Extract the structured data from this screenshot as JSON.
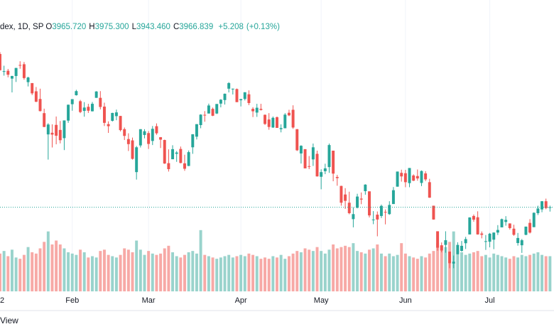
{
  "header": {
    "symbol": "dex, 1D, SP",
    "ohlc": [
      {
        "label": "O",
        "value": "3965.720"
      },
      {
        "label": "H",
        "value": "3975.300"
      },
      {
        "label": "L",
        "value": "3943.460"
      },
      {
        "label": "C",
        "value": "3966.839"
      }
    ],
    "change": "+5.208",
    "change_pct": "(+0.13%)"
  },
  "chart_data": {
    "type": "candlestick",
    "candles": [
      [
        4778,
        4797,
        4758,
        4796
      ],
      [
        4804,
        4819,
        4775,
        4793
      ],
      [
        4788,
        4798,
        4699,
        4701
      ],
      [
        4693,
        4725,
        4672,
        4696
      ],
      [
        4698,
        4708,
        4663,
        4677
      ],
      [
        4656,
        4671,
        4582,
        4670
      ],
      [
        4670,
        4714,
        4638,
        4713
      ],
      [
        4729,
        4749,
        4709,
        4726
      ],
      [
        4733,
        4745,
        4650,
        4659
      ],
      [
        4637,
        4666,
        4614,
        4662
      ],
      [
        4632,
        4632,
        4568,
        4577
      ],
      [
        4588,
        4611,
        4530,
        4532
      ],
      [
        4547,
        4602,
        4480,
        4482
      ],
      [
        4471,
        4495,
        4396,
        4397
      ],
      [
        4357,
        4417,
        4222,
        4410
      ],
      [
        4366,
        4411,
        4287,
        4356
      ],
      [
        4408,
        4453,
        4304,
        4350
      ],
      [
        4381,
        4429,
        4309,
        4326
      ],
      [
        4337,
        4432,
        4273,
        4432
      ],
      [
        4431,
        4517,
        4419,
        4516
      ],
      [
        4519,
        4546,
        4484,
        4546
      ],
      [
        4567,
        4596,
        4565,
        4589
      ],
      [
        4535,
        4542,
        4471,
        4477
      ],
      [
        4483,
        4530,
        4452,
        4501
      ],
      [
        4505,
        4521,
        4472,
        4484
      ],
      [
        4481,
        4531,
        4480,
        4521
      ],
      [
        4553,
        4589,
        4553,
        4587
      ],
      [
        4553,
        4589,
        4491,
        4504
      ],
      [
        4506,
        4527,
        4402,
        4419
      ],
      [
        4412,
        4427,
        4365,
        4401
      ],
      [
        4430,
        4473,
        4426,
        4472
      ],
      [
        4455,
        4490,
        4433,
        4475
      ],
      [
        4456,
        4456,
        4373,
        4380
      ],
      [
        4385,
        4394,
        4327,
        4349
      ],
      [
        4332,
        4363,
        4268,
        4305
      ],
      [
        4325,
        4340,
        4222,
        4226
      ],
      [
        4155,
        4295,
        4115,
        4288
      ],
      [
        4298,
        4385,
        4287,
        4385
      ],
      [
        4354,
        4385,
        4336,
        4374
      ],
      [
        4364,
        4375,
        4279,
        4306
      ],
      [
        4322,
        4402,
        4300,
        4387
      ],
      [
        4401,
        4416,
        4355,
        4363
      ],
      [
        4342,
        4343,
        4284,
        4329
      ],
      [
        4327,
        4329,
        4199,
        4201
      ],
      [
        4203,
        4277,
        4158,
        4171
      ],
      [
        4224,
        4299,
        4224,
        4278
      ],
      [
        4253,
        4268,
        4210,
        4260
      ],
      [
        4279,
        4292,
        4202,
        4204
      ],
      [
        4202,
        4248,
        4162,
        4173
      ],
      [
        4188,
        4271,
        4187,
        4262
      ],
      [
        4288,
        4358,
        4253,
        4358
      ],
      [
        4345,
        4412,
        4330,
        4412
      ],
      [
        4407,
        4465,
        4390,
        4463
      ],
      [
        4462,
        4482,
        4425,
        4461
      ],
      [
        4469,
        4522,
        4469,
        4512
      ],
      [
        4494,
        4501,
        4455,
        4457
      ],
      [
        4469,
        4520,
        4466,
        4520
      ],
      [
        4522,
        4546,
        4502,
        4543
      ],
      [
        4541,
        4576,
        4517,
        4575
      ],
      [
        4602,
        4637,
        4582,
        4632
      ],
      [
        4600,
        4603,
        4571,
        4602
      ],
      [
        4600,
        4603,
        4530,
        4530
      ],
      [
        4540,
        4548,
        4507,
        4546
      ],
      [
        4547,
        4583,
        4539,
        4583
      ],
      [
        4572,
        4593,
        4514,
        4525
      ],
      [
        4494,
        4503,
        4450,
        4481
      ],
      [
        4474,
        4521,
        4451,
        4500
      ],
      [
        4494,
        4521,
        4485,
        4488
      ],
      [
        4462,
        4464,
        4408,
        4413
      ],
      [
        4437,
        4471,
        4382,
        4397
      ],
      [
        4394,
        4453,
        4392,
        4446
      ],
      [
        4449,
        4453,
        4392,
        4392
      ],
      [
        4385,
        4411,
        4368,
        4391
      ],
      [
        4390,
        4471,
        4390,
        4463
      ],
      [
        4473,
        4489,
        4455,
        4459
      ],
      [
        4489,
        4513,
        4387,
        4394
      ],
      [
        4385,
        4386,
        4268,
        4272
      ],
      [
        4255,
        4299,
        4201,
        4296
      ],
      [
        4278,
        4278,
        4175,
        4175
      ],
      [
        4187,
        4241,
        4171,
        4184
      ],
      [
        4223,
        4308,
        4188,
        4288
      ],
      [
        4253,
        4270,
        4131,
        4132
      ],
      [
        4130,
        4170,
        4063,
        4155
      ],
      [
        4160,
        4200,
        4144,
        4175
      ],
      [
        4182,
        4308,
        4151,
        4300
      ],
      [
        4270,
        4270,
        4106,
        4147
      ],
      [
        4129,
        4140,
        4082,
        4123
      ],
      [
        4081,
        4082,
        3975,
        3991
      ],
      [
        4035,
        4069,
        3958,
        4001
      ],
      [
        3991,
        4050,
        3929,
        3935
      ],
      [
        3903,
        3965,
        3859,
        3930
      ],
      [
        3964,
        4039,
        3961,
        4024
      ],
      [
        4013,
        4046,
        3983,
        4008
      ],
      [
        4053,
        4090,
        4034,
        4088
      ],
      [
        4052,
        4052,
        3912,
        3923
      ],
      [
        3900,
        3946,
        3876,
        3901
      ],
      [
        3927,
        3944,
        3811,
        3901
      ],
      [
        3920,
        3981,
        3909,
        3974
      ],
      [
        3942,
        3955,
        3875,
        3941
      ],
      [
        3930,
        3999,
        3926,
        3979
      ],
      [
        3984,
        4075,
        3984,
        4058
      ],
      [
        4077,
        4158,
        4077,
        4158
      ],
      [
        4151,
        4168,
        4104,
        4132
      ],
      [
        4149,
        4167,
        4074,
        4101
      ],
      [
        4096,
        4177,
        4074,
        4177
      ],
      [
        4137,
        4143,
        4107,
        4109
      ],
      [
        4134,
        4169,
        4109,
        4121
      ],
      [
        4097,
        4164,
        4080,
        4161
      ],
      [
        4148,
        4160,
        4107,
        4116
      ],
      [
        4101,
        4119,
        4017,
        4018
      ],
      [
        3975,
        3975,
        3900,
        3901
      ],
      [
        3838,
        3838,
        3734,
        3750
      ],
      [
        3763,
        3778,
        3725,
        3735
      ],
      [
        3765,
        3838,
        3723,
        3790
      ],
      [
        3729,
        3729,
        3640,
        3667
      ],
      [
        3665,
        3708,
        3640,
        3675
      ],
      [
        3715,
        3779,
        3715,
        3765
      ],
      [
        3733,
        3786,
        3729,
        3760
      ],
      [
        3774,
        3808,
        3743,
        3796
      ],
      [
        3821,
        3913,
        3821,
        3912
      ],
      [
        3920,
        3928,
        3889,
        3900
      ],
      [
        3913,
        3945,
        3820,
        3821
      ],
      [
        3826,
        3837,
        3800,
        3819
      ],
      [
        3785,
        3818,
        3738,
        3785
      ],
      [
        3782,
        3829,
        3752,
        3825
      ],
      [
        3793,
        3832,
        3742,
        3831
      ],
      [
        3831,
        3871,
        3818,
        3845
      ],
      [
        3859,
        3906,
        3859,
        3903
      ],
      [
        3888,
        3919,
        3868,
        3899
      ],
      [
        3880,
        3880,
        3847,
        3855
      ],
      [
        3852,
        3873,
        3814,
        3819
      ],
      [
        3775,
        3829,
        3761,
        3802
      ],
      [
        3763,
        3797,
        3722,
        3790
      ],
      [
        3819,
        3863,
        3817,
        3863
      ],
      [
        3883,
        3903,
        3826,
        3831
      ],
      [
        3860,
        3939,
        3860,
        3937
      ],
      [
        3935,
        3975,
        3925,
        3960
      ],
      [
        3955,
        4000,
        3940,
        3999
      ],
      [
        3999,
        4013,
        3956,
        3962
      ],
      [
        3965.72,
        3975.3,
        3943.46,
        3966.84
      ]
    ],
    "volume": [
      2.4,
      2.6,
      2.9,
      3.1,
      2.7,
      3.2,
      2.6,
      2.5,
      2.8,
      3.4,
      3.0,
      2.9,
      3.3,
      3.8,
      4.6,
      3.6,
      3.9,
      3.6,
      3.3,
      3.0,
      2.9,
      2.8,
      3.2,
      3.0,
      2.6,
      2.7,
      2.6,
      3.1,
      3.2,
      2.8,
      2.7,
      2.6,
      2.8,
      3.3,
      3.2,
      3.0,
      3.9,
      3.2,
      2.8,
      3.1,
      2.9,
      2.8,
      2.9,
      3.3,
      3.5,
      3.0,
      2.7,
      2.6,
      2.8,
      3.0,
      3.1,
      2.9,
      4.7,
      2.8,
      2.7,
      2.6,
      2.5,
      2.6,
      2.7,
      2.8,
      2.6,
      2.7,
      2.8,
      2.7,
      2.9,
      2.8,
      2.7,
      2.5,
      2.6,
      2.5,
      2.7,
      2.6,
      2.8,
      2.5,
      2.7,
      2.9,
      3.1,
      3.0,
      3.3,
      3.2,
      3.1,
      3.4,
      3.1,
      2.9,
      3.2,
      3.6,
      3.3,
      3.4,
      3.5,
      3.4,
      3.7,
      3.1,
      3.0,
      2.9,
      3.2,
      3.3,
      3.6,
      2.9,
      2.7,
      2.9,
      2.7,
      2.8,
      3.7,
      2.9,
      2.7,
      2.6,
      2.5,
      2.7,
      2.6,
      2.9,
      3.1,
      3.7,
      3.5,
      3.4,
      3.8,
      4.6,
      3.3,
      3.0,
      2.8,
      2.9,
      3.0,
      3.1,
      2.7,
      2.8,
      2.6,
      2.9,
      2.8,
      2.7,
      2.6,
      2.5,
      2.7,
      2.6,
      2.8,
      2.7,
      2.8,
      2.9,
      3.0,
      2.8,
      2.7,
      2.7
    ],
    "xlim": [
      2,
      140
    ],
    "ylim": [
      3516,
      4963
    ],
    "volume_lim": [
      0,
      6
    ],
    "xticks": [
      {
        "value": 0,
        "label": "2"
      },
      {
        "value": 20,
        "label": "Feb"
      },
      {
        "value": 39,
        "label": "Mar"
      },
      {
        "value": 62,
        "label": "Apr"
      },
      {
        "value": 82,
        "label": "May"
      },
      {
        "value": 103,
        "label": "Jun"
      },
      {
        "value": 124,
        "label": "Jul"
      }
    ],
    "up_color": "#26a69a",
    "down_color": "#ef5350",
    "volume_up_color": "#99d3cc",
    "volume_down_color": "#f7a9a6",
    "grid": true,
    "last_price_line": true
  },
  "footer": {
    "brand": "View"
  }
}
